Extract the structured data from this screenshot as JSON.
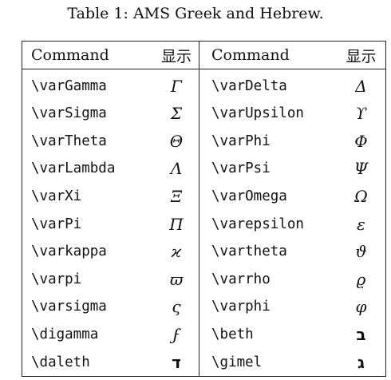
{
  "caption": "Table 1: AMS Greek and Hebrew.",
  "headers": {
    "command": "Command",
    "display": "显示"
  },
  "rows": [
    {
      "cmd1": "\\varGamma",
      "sym1": "Γ",
      "cmd2": "\\varDelta",
      "sym2": "Δ"
    },
    {
      "cmd1": "\\varSigma",
      "sym1": "Σ",
      "cmd2": "\\varUpsilon",
      "sym2": "ϒ"
    },
    {
      "cmd1": "\\varTheta",
      "sym1": "Θ",
      "cmd2": "\\varPhi",
      "sym2": "Φ"
    },
    {
      "cmd1": "\\varLambda",
      "sym1": "Λ",
      "cmd2": "\\varPsi",
      "sym2": "Ψ"
    },
    {
      "cmd1": "\\varXi",
      "sym1": "Ξ",
      "cmd2": "\\varOmega",
      "sym2": "Ω"
    },
    {
      "cmd1": "\\varPi",
      "sym1": "Π",
      "cmd2": "\\varepsilon",
      "sym2": "ε"
    },
    {
      "cmd1": "\\varkappa",
      "sym1": "ϰ",
      "cmd2": "\\vartheta",
      "sym2": "ϑ"
    },
    {
      "cmd1": "\\varpi",
      "sym1": "ϖ",
      "cmd2": "\\varrho",
      "sym2": "ϱ"
    },
    {
      "cmd1": "\\varsigma",
      "sym1": "ς",
      "cmd2": "\\varphi",
      "sym2": "φ"
    },
    {
      "cmd1": "\\digamma",
      "sym1": "ϝ",
      "cmd2": "\\beth",
      "sym2": "ב"
    },
    {
      "cmd1": "\\daleth",
      "sym1": "ד",
      "cmd2": "\\gimel",
      "sym2": "ג"
    }
  ]
}
